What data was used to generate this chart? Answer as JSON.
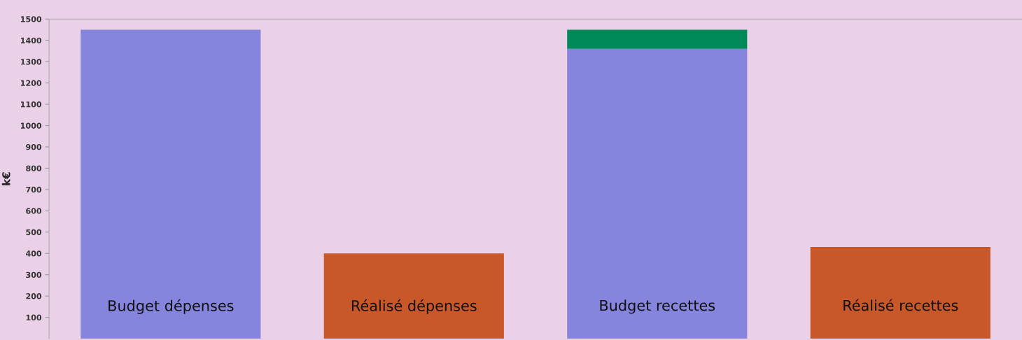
{
  "chart_data": {
    "type": "bar",
    "stacked": true,
    "ylabel": "k€",
    "categories": [
      "Budget dépenses",
      "Réalisé dépenses",
      "Budget recettes",
      "Réalisé recettes"
    ],
    "series": [
      {
        "colors": [
          "#8585dd",
          "#c8582a",
          "#8585dd",
          "#c8582a"
        ],
        "values": [
          1450,
          400,
          1360,
          430
        ]
      },
      {
        "color": "#008a5a",
        "values": [
          null,
          null,
          90,
          null
        ]
      }
    ],
    "ylim": [
      0,
      1500
    ],
    "yticks": [
      100,
      200,
      300,
      400,
      500,
      600,
      700,
      800,
      900,
      1000,
      1100,
      1200,
      1300,
      1400,
      1500
    ],
    "grid": false,
    "legend": false
  }
}
